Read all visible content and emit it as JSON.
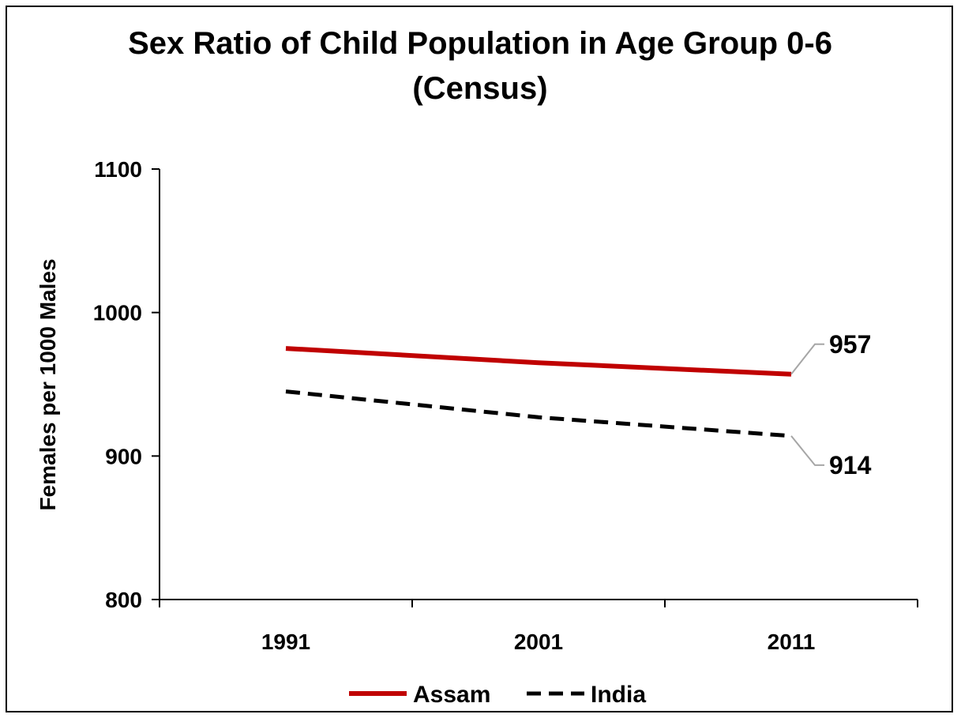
{
  "chart_data": {
    "type": "line",
    "title": "Sex Ratio of Child Population in Age Group 0-6",
    "subtitle": "(Census)",
    "ylabel": "Females per 1000 Males",
    "xlabel": "",
    "categories": [
      "1991",
      "2001",
      "2011"
    ],
    "ylim": [
      800,
      1100
    ],
    "yticks": [
      800,
      900,
      1000,
      1100
    ],
    "grid": false,
    "legend_position": "bottom",
    "series": [
      {
        "name": "Assam",
        "values": [
          975,
          965,
          957
        ],
        "color": "#c00000",
        "style": "solid"
      },
      {
        "name": "India",
        "values": [
          945,
          927,
          914
        ],
        "color": "#000000",
        "style": "dashed"
      }
    ],
    "annotations": [
      {
        "series": "Assam",
        "category": "2011",
        "text": "957"
      },
      {
        "series": "India",
        "category": "2011",
        "text": "914"
      }
    ]
  }
}
